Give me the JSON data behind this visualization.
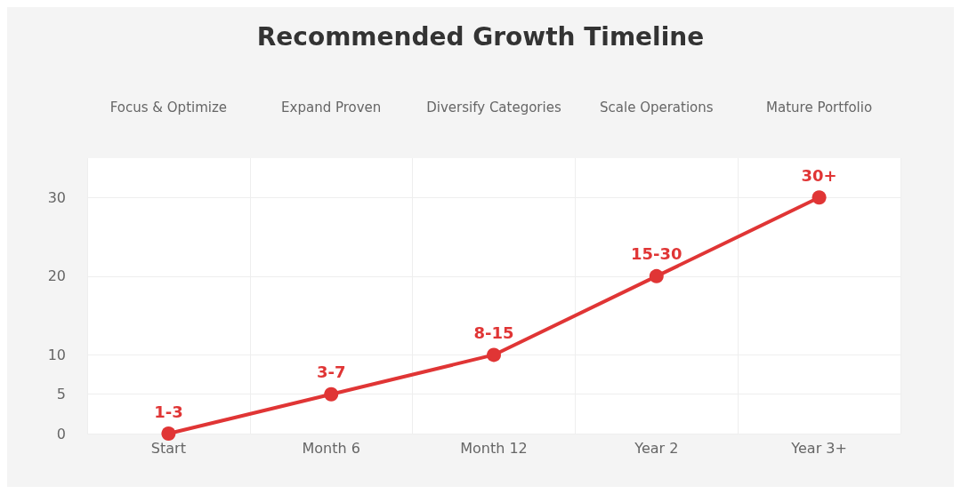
{
  "chart_data": {
    "type": "line",
    "title": "Recommended Growth Timeline",
    "categories": [
      "Start",
      "Month 6",
      "Month 12",
      "Year 2",
      "Year 3+"
    ],
    "series": [
      {
        "color": "#e03535",
        "values": [
          0,
          5,
          10,
          20,
          30
        ],
        "value_labels": [
          "1-3",
          "3-7",
          "8-15",
          "15-30",
          "30+"
        ]
      }
    ],
    "ylim": [
      0,
      35
    ],
    "yticks": [
      0,
      5,
      10,
      20,
      30
    ],
    "annotations": [
      "Focus & Optimize",
      "Expand Proven",
      "Diversify Categories",
      "Scale Operations",
      "Mature Portfolio"
    ],
    "grid": true,
    "marker": "circle",
    "line_style": "solid"
  }
}
